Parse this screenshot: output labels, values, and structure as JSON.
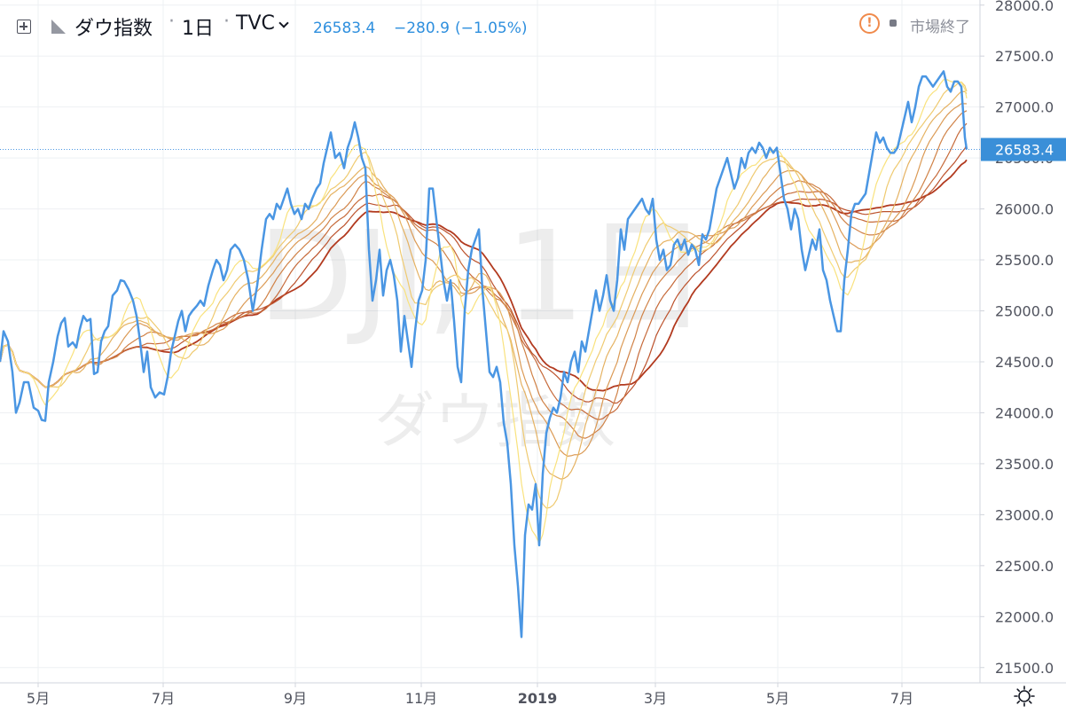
{
  "header": {
    "symbol_name": "ダウ指数",
    "interval": "1日",
    "exchange": "TVC",
    "last": "26583.4",
    "change": "−280.9",
    "change_pct": "(−1.05%)",
    "market_status": "市場終了"
  },
  "watermark": {
    "line1": "DJI, 1日",
    "line2": "ダウ指数"
  },
  "icons": {
    "plus": "plus-square-icon",
    "flag": "flag-icon",
    "chevron": "chevron-down-icon",
    "alert": "alert-circle-icon",
    "settings": "gear-icon"
  },
  "colors": {
    "price_line": "#4a96e3",
    "ribbon_fast": "#f9e27d",
    "ribbon_slow": "#b23a1f",
    "price_label_bg": "#3a8fd8"
  },
  "chart_data": {
    "type": "line",
    "y_axis": {
      "ticks": [
        "21500.0",
        "22000.0",
        "22500.0",
        "23000.0",
        "23500.0",
        "24000.0",
        "24500.0",
        "25000.0",
        "25500.0",
        "26000.0",
        "26500.0",
        "27000.0",
        "27500.0",
        "28000.0"
      ],
      "range": [
        21350,
        28050
      ]
    },
    "x_axis": {
      "ticks": [
        "5月",
        "7月",
        "9月",
        "11月",
        "2019",
        "3月",
        "5月",
        "7月"
      ]
    },
    "last_price_label": "26583.4",
    "series": [
      {
        "values": [
          [
            0,
            24500
          ],
          [
            4,
            24800
          ],
          [
            9,
            24700
          ],
          [
            14,
            24400
          ],
          [
            18,
            24000
          ],
          [
            22,
            24100
          ],
          [
            27,
            24300
          ],
          [
            32,
            24300
          ],
          [
            38,
            24050
          ],
          [
            43,
            24020
          ],
          [
            47,
            23930
          ],
          [
            51,
            23920
          ],
          [
            55,
            24300
          ],
          [
            60,
            24500
          ],
          [
            65,
            24750
          ],
          [
            69,
            24880
          ],
          [
            73,
            24930
          ],
          [
            77,
            24650
          ],
          [
            82,
            24690
          ],
          [
            86,
            24640
          ],
          [
            90,
            24820
          ],
          [
            94,
            24950
          ],
          [
            98,
            24900
          ],
          [
            102,
            24920
          ],
          [
            106,
            24380
          ],
          [
            110,
            24400
          ],
          [
            114,
            24700
          ],
          [
            118,
            24800
          ],
          [
            122,
            24850
          ],
          [
            127,
            25150
          ],
          [
            132,
            25200
          ],
          [
            136,
            25300
          ],
          [
            140,
            25290
          ],
          [
            145,
            25210
          ],
          [
            150,
            25100
          ],
          [
            154,
            24950
          ],
          [
            158,
            24700
          ],
          [
            162,
            24400
          ],
          [
            166,
            24600
          ],
          [
            170,
            24250
          ],
          [
            175,
            24150
          ],
          [
            180,
            24200
          ],
          [
            185,
            24180
          ],
          [
            189,
            24350
          ],
          [
            193,
            24600
          ],
          [
            197,
            24750
          ],
          [
            201,
            24900
          ],
          [
            205,
            25000
          ],
          [
            209,
            24800
          ],
          [
            213,
            24950
          ],
          [
            217,
            25000
          ],
          [
            222,
            25050
          ],
          [
            226,
            25100
          ],
          [
            230,
            25050
          ],
          [
            235,
            25250
          ],
          [
            240,
            25400
          ],
          [
            244,
            25500
          ],
          [
            248,
            25450
          ],
          [
            252,
            25300
          ],
          [
            256,
            25400
          ],
          [
            260,
            25600
          ],
          [
            265,
            25650
          ],
          [
            270,
            25600
          ],
          [
            275,
            25500
          ],
          [
            280,
            25300
          ],
          [
            285,
            25000
          ],
          [
            290,
            25250
          ],
          [
            295,
            25600
          ],
          [
            300,
            25900
          ],
          [
            304,
            25950
          ],
          [
            308,
            25900
          ],
          [
            312,
            26050
          ],
          [
            316,
            26000
          ],
          [
            320,
            26100
          ],
          [
            324,
            26200
          ],
          [
            328,
            26050
          ],
          [
            332,
            25950
          ],
          [
            336,
            26000
          ],
          [
            340,
            25900
          ],
          [
            344,
            26050
          ],
          [
            348,
            26000
          ],
          [
            352,
            26100
          ],
          [
            357,
            26200
          ],
          [
            361,
            26250
          ],
          [
            365,
            26450
          ],
          [
            369,
            26600
          ],
          [
            373,
            26750
          ],
          [
            378,
            26500
          ],
          [
            383,
            26550
          ],
          [
            388,
            26400
          ],
          [
            392,
            26600
          ],
          [
            396,
            26700
          ],
          [
            400,
            26850
          ],
          [
            404,
            26700
          ],
          [
            408,
            26500
          ],
          [
            412,
            26400
          ],
          [
            416,
            25600
          ],
          [
            420,
            25100
          ],
          [
            424,
            25300
          ],
          [
            428,
            25600
          ],
          [
            432,
            25150
          ],
          [
            436,
            25400
          ],
          [
            440,
            25500
          ],
          [
            444,
            25350
          ],
          [
            448,
            25100
          ],
          [
            452,
            24600
          ],
          [
            456,
            24950
          ],
          [
            460,
            24700
          ],
          [
            464,
            24450
          ],
          [
            468,
            24800
          ],
          [
            472,
            25100
          ],
          [
            476,
            25200
          ],
          [
            480,
            25500
          ],
          [
            484,
            26200
          ],
          [
            488,
            26200
          ],
          [
            492,
            25900
          ],
          [
            496,
            25600
          ],
          [
            500,
            25300
          ],
          [
            504,
            25100
          ],
          [
            508,
            25300
          ],
          [
            512,
            24900
          ],
          [
            516,
            24450
          ],
          [
            520,
            24300
          ],
          [
            524,
            25000
          ],
          [
            528,
            25400
          ],
          [
            532,
            25600
          ],
          [
            536,
            25700
          ],
          [
            540,
            25800
          ],
          [
            544,
            25200
          ],
          [
            548,
            24800
          ],
          [
            552,
            24400
          ],
          [
            556,
            24350
          ],
          [
            560,
            24450
          ],
          [
            564,
            24300
          ],
          [
            568,
            23900
          ],
          [
            572,
            23700
          ],
          [
            576,
            23300
          ],
          [
            580,
            22700
          ],
          [
            584,
            22300
          ],
          [
            588,
            21800
          ],
          [
            592,
            22800
          ],
          [
            596,
            23100
          ],
          [
            600,
            23050
          ],
          [
            604,
            23300
          ],
          [
            608,
            22700
          ],
          [
            612,
            23400
          ],
          [
            616,
            23800
          ],
          [
            620,
            23950
          ],
          [
            624,
            24050
          ],
          [
            628,
            24000
          ],
          [
            632,
            24150
          ],
          [
            636,
            24400
          ],
          [
            640,
            24300
          ],
          [
            644,
            24500
          ],
          [
            648,
            24600
          ],
          [
            652,
            24400
          ],
          [
            656,
            24700
          ],
          [
            660,
            24600
          ],
          [
            664,
            24800
          ],
          [
            668,
            25000
          ],
          [
            672,
            25200
          ],
          [
            676,
            25000
          ],
          [
            680,
            25150
          ],
          [
            684,
            25350
          ],
          [
            688,
            25100
          ],
          [
            692,
            25000
          ],
          [
            696,
            25300
          ],
          [
            700,
            25800
          ],
          [
            704,
            25600
          ],
          [
            708,
            25900
          ],
          [
            712,
            25950
          ],
          [
            716,
            26000
          ],
          [
            720,
            26050
          ],
          [
            724,
            26100
          ],
          [
            728,
            26000
          ],
          [
            732,
            25950
          ],
          [
            736,
            26100
          ],
          [
            740,
            25700
          ],
          [
            744,
            25500
          ],
          [
            748,
            25600
          ],
          [
            752,
            25400
          ],
          [
            756,
            25450
          ],
          [
            760,
            25650
          ],
          [
            764,
            25700
          ],
          [
            768,
            25600
          ],
          [
            772,
            25700
          ],
          [
            776,
            25550
          ],
          [
            780,
            25650
          ],
          [
            784,
            25600
          ],
          [
            788,
            25450
          ],
          [
            792,
            25750
          ],
          [
            796,
            25700
          ],
          [
            800,
            25800
          ],
          [
            804,
            26000
          ],
          [
            808,
            26200
          ],
          [
            812,
            26300
          ],
          [
            816,
            26400
          ],
          [
            820,
            26500
          ],
          [
            824,
            26350
          ],
          [
            828,
            26200
          ],
          [
            832,
            26300
          ],
          [
            836,
            26500
          ],
          [
            840,
            26400
          ],
          [
            844,
            26550
          ],
          [
            848,
            26600
          ],
          [
            852,
            26550
          ],
          [
            856,
            26650
          ],
          [
            860,
            26600
          ],
          [
            864,
            26500
          ],
          [
            868,
            26600
          ],
          [
            872,
            26550
          ],
          [
            876,
            26600
          ],
          [
            880,
            26350
          ],
          [
            884,
            26100
          ],
          [
            888,
            26000
          ],
          [
            892,
            25800
          ],
          [
            896,
            26000
          ],
          [
            900,
            25900
          ],
          [
            904,
            25600
          ],
          [
            908,
            25400
          ],
          [
            912,
            25550
          ],
          [
            916,
            25700
          ],
          [
            920,
            25600
          ],
          [
            924,
            25800
          ],
          [
            928,
            25400
          ],
          [
            932,
            25300
          ],
          [
            936,
            25100
          ],
          [
            940,
            24950
          ],
          [
            944,
            24800
          ],
          [
            948,
            24800
          ],
          [
            952,
            25300
          ],
          [
            956,
            25600
          ],
          [
            960,
            25950
          ],
          [
            964,
            26050
          ],
          [
            968,
            26050
          ],
          [
            972,
            26100
          ],
          [
            976,
            26150
          ],
          [
            980,
            26350
          ],
          [
            984,
            26550
          ],
          [
            988,
            26750
          ],
          [
            992,
            26650
          ],
          [
            996,
            26700
          ],
          [
            1000,
            26600
          ],
          [
            1004,
            26550
          ],
          [
            1008,
            26550
          ],
          [
            1012,
            26600
          ],
          [
            1016,
            26750
          ],
          [
            1020,
            26900
          ],
          [
            1024,
            27050
          ],
          [
            1028,
            26850
          ],
          [
            1032,
            27000
          ],
          [
            1036,
            27200
          ],
          [
            1040,
            27300
          ],
          [
            1044,
            27300
          ],
          [
            1048,
            27250
          ],
          [
            1052,
            27200
          ],
          [
            1056,
            27250
          ],
          [
            1060,
            27300
          ],
          [
            1064,
            27350
          ],
          [
            1068,
            27200
          ],
          [
            1072,
            27150
          ],
          [
            1076,
            27250
          ],
          [
            1080,
            27250
          ],
          [
            1084,
            27200
          ],
          [
            1088,
            26700
          ],
          [
            1090,
            26583.4
          ]
        ]
      }
    ]
  }
}
